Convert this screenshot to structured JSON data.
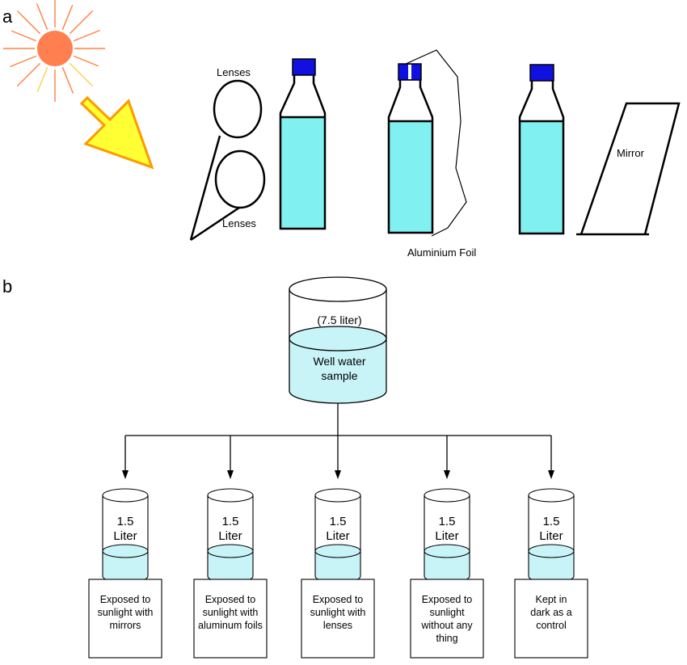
{
  "panel_a": {
    "letter": "a",
    "labels": {
      "lenses_top": "Lenses",
      "lenses_bottom": "Lenses",
      "aluminium_foil": "Aluminium Foil",
      "mirror": "Mirror"
    }
  },
  "panel_b": {
    "letter": "b",
    "main_vessel": {
      "volume": "(7.5 liter)",
      "sample_line1": "Well water",
      "sample_line2": "sample"
    },
    "beakers": [
      {
        "vol": "1.5",
        "unit": "Liter",
        "desc": [
          "Exposed to",
          "sunlight with",
          "mirrors"
        ]
      },
      {
        "vol": "1.5",
        "unit": "Liter",
        "desc": [
          "Exposed to",
          "sunlight with",
          "aluminum foils"
        ]
      },
      {
        "vol": "1.5",
        "unit": "Liter",
        "desc": [
          "Exposed to",
          "sunlight with",
          "lenses"
        ]
      },
      {
        "vol": "1.5",
        "unit": "Liter",
        "desc": [
          "Exposed to",
          "sunlight",
          "without any",
          "thing"
        ]
      },
      {
        "vol": "1.5",
        "unit": "Liter",
        "desc": [
          "Kept in",
          "dark as a",
          "control"
        ]
      }
    ]
  },
  "colors": {
    "water": "#80f0f0",
    "water_light": "#c8f4f8",
    "cap": "#1010e0",
    "sun": "#ff7f50",
    "sun_rays": "#ff8040",
    "arrow_fill": "#ffff33",
    "arrow_stroke": "#ff9900"
  }
}
